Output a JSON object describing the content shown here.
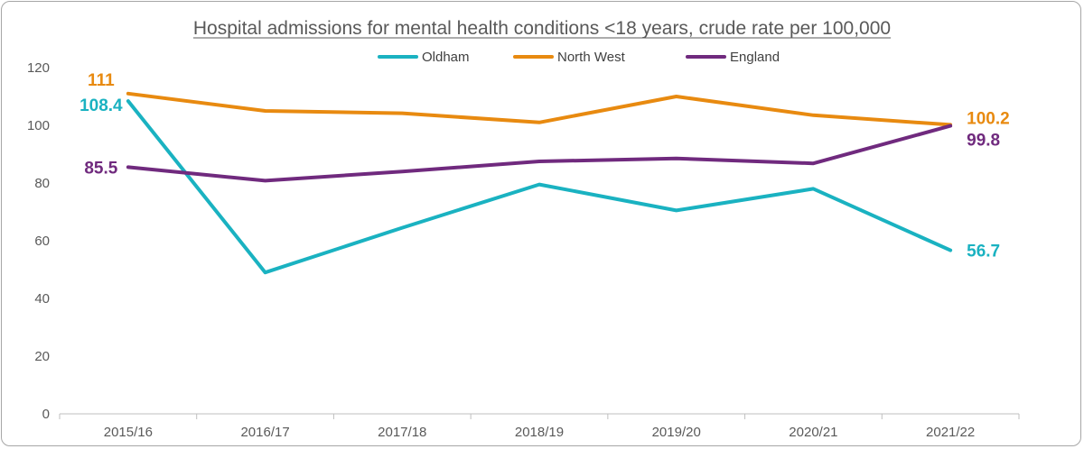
{
  "chart_data": {
    "type": "line",
    "title": "Hospital admissions for mental health conditions <18 years, crude rate per 100,000",
    "categories": [
      "2015/16",
      "2016/17",
      "2017/18",
      "2018/19",
      "2019/20",
      "2020/21",
      "2021/22"
    ],
    "ylim": [
      0,
      120
    ],
    "yticks": [
      "0",
      "20",
      "40",
      "60",
      "80",
      "100",
      "120"
    ],
    "grid": false,
    "legend_position": "top",
    "series": [
      {
        "name": "Oldham",
        "color": "#1ab2c1",
        "values": [
          108.4,
          49,
          64.5,
          79.5,
          70.5,
          78,
          56.7
        ],
        "labels": [
          {
            "index": 0,
            "text": "108.4"
          },
          {
            "index": 6,
            "text": "56.7"
          }
        ]
      },
      {
        "name": "North West",
        "color": "#e88a10",
        "values": [
          111,
          105,
          104.2,
          101,
          110,
          103.5,
          100.2
        ],
        "labels": [
          {
            "index": 0,
            "text": "111"
          },
          {
            "index": 6,
            "text": "100.2"
          }
        ]
      },
      {
        "name": "England",
        "color": "#702a7e",
        "values": [
          85.5,
          80.8,
          84,
          87.5,
          88.5,
          86.8,
          99.8
        ],
        "labels": [
          {
            "index": 0,
            "text": "85.5"
          },
          {
            "index": 6,
            "text": "99.8"
          }
        ]
      }
    ]
  }
}
